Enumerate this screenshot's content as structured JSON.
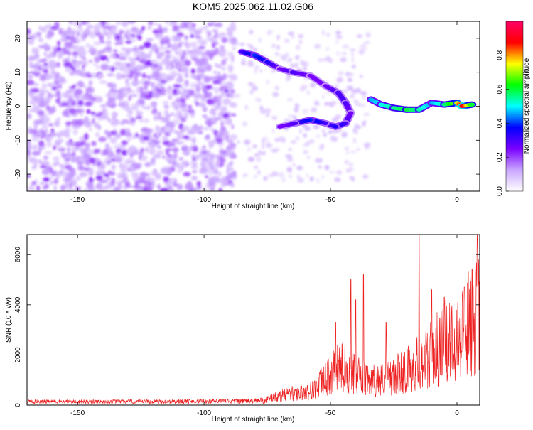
{
  "figure": {
    "title": "KOM5.2025.062.11.02.G06"
  },
  "chart_data": [
    {
      "type": "heatmap",
      "title": "KOM5.2025.062.11.02.G06",
      "xlabel": "Height of straight line (km)",
      "ylabel": "Frequency (Hz)",
      "xlim": [
        -170,
        9
      ],
      "ylim": [
        -25,
        25
      ],
      "x_ticks": [
        -150,
        -100,
        -50,
        0
      ],
      "y_ticks": [
        -20,
        -10,
        0,
        10,
        20
      ],
      "colorbar": {
        "label": "Normalized spectral amplitude",
        "range": [
          0.0,
          1.0
        ],
        "ticks": [
          0.0,
          0.2,
          0.4,
          0.6,
          0.8
        ],
        "colormap": [
          "#ffffff",
          "#c9a6ff",
          "#7a00ff",
          "#0000ff",
          "#00ffff",
          "#00ff00",
          "#ffff00",
          "#ff0000",
          "#ff0066"
        ]
      },
      "ridge": [
        {
          "x": -85,
          "y": 16,
          "v": 0.3
        },
        {
          "x": -80,
          "y": 15,
          "v": 0.4
        },
        {
          "x": -75,
          "y": 13,
          "v": 0.35
        },
        {
          "x": -70,
          "y": 11,
          "v": 0.25
        },
        {
          "x": -65,
          "y": 10,
          "v": 0.3
        },
        {
          "x": -58,
          "y": 9,
          "v": 0.25
        },
        {
          "x": -52,
          "y": 6,
          "v": 0.25
        },
        {
          "x": -47,
          "y": 4,
          "v": 0.3
        },
        {
          "x": -44,
          "y": 1,
          "v": 0.3
        },
        {
          "x": -42,
          "y": -2,
          "v": 0.25
        },
        {
          "x": -44,
          "y": -5,
          "v": 0.3
        },
        {
          "x": -48,
          "y": -6,
          "v": 0.35
        },
        {
          "x": -52,
          "y": -5,
          "v": 0.3
        },
        {
          "x": -58,
          "y": -4,
          "v": 0.4
        },
        {
          "x": -64,
          "y": -5,
          "v": 0.3
        },
        {
          "x": -70,
          "y": -6,
          "v": 0.25
        },
        {
          "x": -34,
          "y": 2,
          "v": 0.45
        },
        {
          "x": -30,
          "y": 0.5,
          "v": 0.5
        },
        {
          "x": -25,
          "y": -0.5,
          "v": 0.55
        },
        {
          "x": -20,
          "y": -1,
          "v": 0.6
        },
        {
          "x": -15,
          "y": -1,
          "v": 0.55
        },
        {
          "x": -10,
          "y": 1,
          "v": 0.45
        },
        {
          "x": -5,
          "y": 0.5,
          "v": 0.55
        },
        {
          "x": 0,
          "y": 1,
          "v": 0.7
        },
        {
          "x": 2,
          "y": 0,
          "v": 0.95
        },
        {
          "x": 6,
          "y": 0.5,
          "v": 0.6
        }
      ]
    },
    {
      "type": "line",
      "xlabel": "Height of straight line (km)",
      "ylabel": "SNR (10 * v/v)",
      "xlim": [
        -170,
        9
      ],
      "ylim": [
        0,
        6800
      ],
      "x_ticks": [
        -150,
        -100,
        -50,
        0
      ],
      "y_ticks": [
        0,
        2000,
        4000,
        6000
      ],
      "color": "#ee2222",
      "envelope": [
        {
          "x": -170,
          "y": 200
        },
        {
          "x": -120,
          "y": 200
        },
        {
          "x": -80,
          "y": 250
        },
        {
          "x": -72,
          "y": 400
        },
        {
          "x": -65,
          "y": 600
        },
        {
          "x": -58,
          "y": 700
        },
        {
          "x": -52,
          "y": 1300
        },
        {
          "x": -46,
          "y": 2000
        },
        {
          "x": -42,
          "y": 1700
        },
        {
          "x": -35,
          "y": 1200
        },
        {
          "x": -25,
          "y": 1500
        },
        {
          "x": -20,
          "y": 1800
        },
        {
          "x": -10,
          "y": 2600
        },
        {
          "x": -5,
          "y": 3200
        },
        {
          "x": 0,
          "y": 3700
        },
        {
          "x": 5,
          "y": 4200
        },
        {
          "x": 9,
          "y": 4800
        }
      ],
      "peaks": [
        {
          "x": -48,
          "y": 3300
        },
        {
          "x": -42,
          "y": 5000
        },
        {
          "x": -40,
          "y": 4200
        },
        {
          "x": -37,
          "y": 5200
        },
        {
          "x": -28,
          "y": 3300
        },
        {
          "x": -15,
          "y": 6800
        },
        {
          "x": -10,
          "y": 4600
        },
        {
          "x": -5,
          "y": 4300
        },
        {
          "x": 3,
          "y": 4700
        },
        {
          "x": 6,
          "y": 5400
        },
        {
          "x": 8,
          "y": 6800
        }
      ]
    }
  ]
}
